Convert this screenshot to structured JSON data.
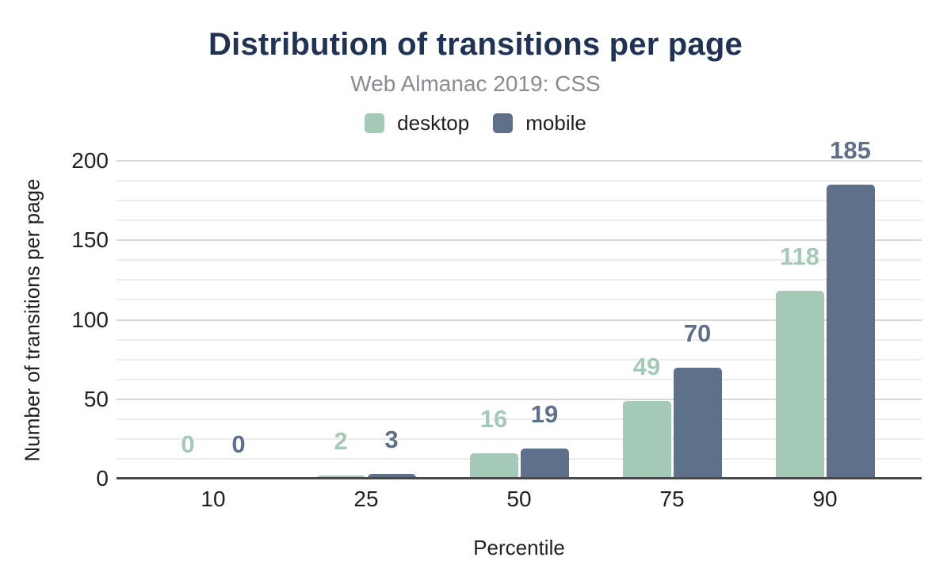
{
  "header": {
    "title": "Distribution of transitions per page",
    "subtitle": "Web Almanac 2019: CSS"
  },
  "legend": [
    {
      "label": "desktop",
      "color": "#a4c9b6"
    },
    {
      "label": "mobile",
      "color": "#5f708b"
    }
  ],
  "axes": {
    "xlabel": "Percentile",
    "ylabel": "Number of transitions per page"
  },
  "chart_data": {
    "type": "bar",
    "title": "Distribution of transitions per page",
    "subtitle": "Web Almanac 2019: CSS",
    "categories": [
      "10",
      "25",
      "50",
      "75",
      "90"
    ],
    "series": [
      {
        "name": "desktop",
        "color": "#a4c9b6",
        "values": [
          0,
          2,
          16,
          49,
          118
        ]
      },
      {
        "name": "mobile",
        "color": "#5f708b",
        "values": [
          0,
          3,
          19,
          70,
          185
        ]
      }
    ],
    "xlabel": "Percentile",
    "ylabel": "Number of transitions per page",
    "ylim": [
      0,
      200
    ],
    "yticks": [
      0,
      50,
      100,
      150,
      200
    ],
    "minor_gridline_step": 12.5,
    "grid": true,
    "legend_position": "top",
    "data_labels": true
  },
  "colors": {
    "title": "#213354",
    "subtitle": "#878b92",
    "tick_text": "#1f2023",
    "axis_line": "#47494c",
    "gridline_major": "#d8d8d8",
    "gridline_minor": "#ececec",
    "background": "#ffffff"
  }
}
